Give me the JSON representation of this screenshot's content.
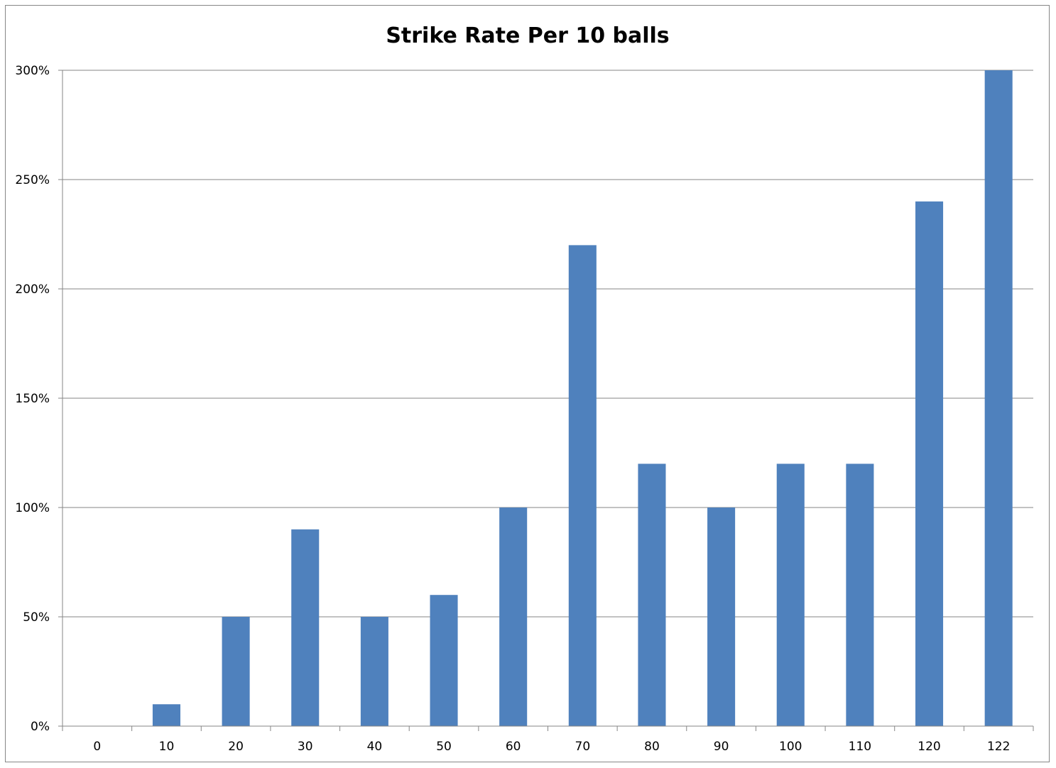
{
  "chart_data": {
    "type": "bar",
    "title": "Strike Rate Per 10 balls",
    "xlabel": "",
    "ylabel": "",
    "categories": [
      "0",
      "10",
      "20",
      "30",
      "40",
      "50",
      "60",
      "70",
      "80",
      "90",
      "100",
      "110",
      "120",
      "122"
    ],
    "values": [
      0,
      10,
      50,
      90,
      50,
      60,
      100,
      220,
      120,
      100,
      120,
      120,
      240,
      300
    ],
    "value_unit": "%",
    "ylim": [
      0,
      300
    ],
    "yticks": [
      0,
      50,
      100,
      150,
      200,
      250,
      300
    ],
    "ytick_labels": [
      "0%",
      "50%",
      "100%",
      "150%",
      "200%",
      "250%",
      "300%"
    ],
    "grid": "horizontal",
    "legend": "none",
    "bar_color": "#4F81BD",
    "grid_color": "#868686"
  }
}
